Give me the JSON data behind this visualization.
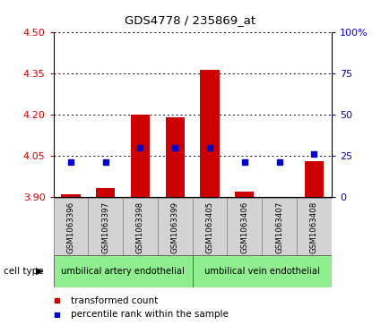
{
  "title": "GDS4778 / 235869_at",
  "samples": [
    "GSM1063396",
    "GSM1063397",
    "GSM1063398",
    "GSM1063399",
    "GSM1063405",
    "GSM1063406",
    "GSM1063407",
    "GSM1063408"
  ],
  "transformed_count": [
    3.91,
    3.93,
    4.2,
    4.19,
    4.365,
    3.92,
    3.9,
    4.03
  ],
  "percentile_rank": [
    21,
    21,
    30,
    30,
    30,
    21,
    21,
    26
  ],
  "ylim_left": [
    3.9,
    4.5
  ],
  "ylim_right": [
    0,
    100
  ],
  "yticks_left": [
    3.9,
    4.05,
    4.2,
    4.35,
    4.5
  ],
  "yticks_right": [
    0,
    25,
    50,
    75,
    100
  ],
  "bar_color": "#cc0000",
  "dot_color": "#0000cc",
  "bar_bottom": 3.9,
  "cell_type_groups": [
    {
      "label": "umbilical artery endothelial",
      "start": 0,
      "end": 4,
      "color": "#90ee90"
    },
    {
      "label": "umbilical vein endothelial",
      "start": 4,
      "end": 8,
      "color": "#90ee90"
    }
  ],
  "cell_type_label": "cell type",
  "legend_items": [
    {
      "label": "transformed count",
      "color": "#cc0000"
    },
    {
      "label": "percentile rank within the sample",
      "color": "#0000cc"
    }
  ],
  "box_bg": "#d3d3d3",
  "bg_color": "#ffffff"
}
